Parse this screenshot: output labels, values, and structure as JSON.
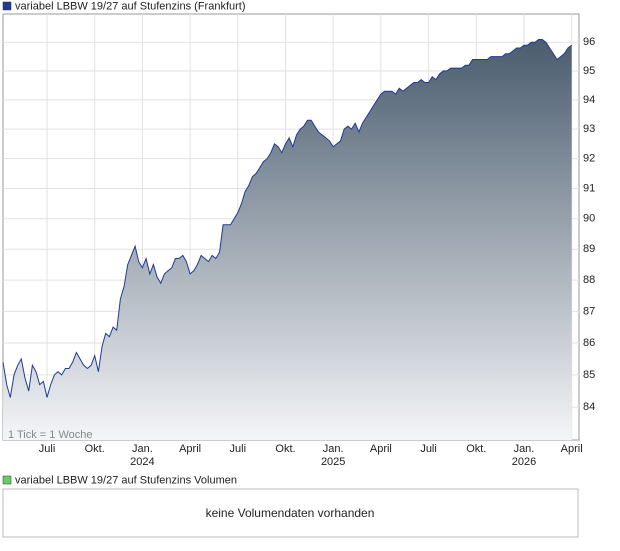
{
  "chart_data": {
    "type": "area",
    "legend_title": "variabel LBBW 19/27 auf Stufenzins (Frankfurt)",
    "legend_color": "#1f3a9a",
    "note": "1 Tick = 1 Woche",
    "log_scale": true,
    "grid": true,
    "fill_top": "#4a5c6e",
    "fill_bottom": "#f4f5f7",
    "xlim": [
      0,
      157
    ],
    "xticks": [
      {
        "value": 12,
        "label": "Juli"
      },
      {
        "value": 25,
        "label": "Okt."
      },
      {
        "value": 38,
        "label": "Jan.",
        "sublabel": "2024"
      },
      {
        "value": 51,
        "label": "April"
      },
      {
        "value": 64,
        "label": "Juli"
      },
      {
        "value": 77,
        "label": "Okt."
      },
      {
        "value": 90,
        "label": "Jan.",
        "sublabel": "2025"
      },
      {
        "value": 103,
        "label": "April"
      },
      {
        "value": 116,
        "label": "Juli"
      },
      {
        "value": 129,
        "label": "Okt."
      },
      {
        "value": 142,
        "label": "Jan.",
        "sublabel": "2026"
      },
      {
        "value": 155,
        "label": "April"
      }
    ],
    "ylim": [
      83,
      97
    ],
    "yticks": [
      84,
      85,
      86,
      87,
      88,
      89,
      90,
      91,
      92,
      93,
      94,
      95,
      96
    ],
    "x": [
      0,
      1,
      2,
      3,
      4,
      5,
      6,
      7,
      8,
      9,
      10,
      11,
      12,
      13,
      14,
      15,
      16,
      17,
      18,
      19,
      20,
      21,
      22,
      23,
      24,
      25,
      26,
      27,
      28,
      29,
      30,
      31,
      32,
      33,
      34,
      35,
      36,
      37,
      38,
      39,
      40,
      41,
      42,
      43,
      44,
      45,
      46,
      47,
      48,
      49,
      50,
      51,
      52,
      53,
      54,
      55,
      56,
      57,
      58,
      59,
      60,
      61,
      62,
      63,
      64,
      65,
      66,
      67,
      68,
      69,
      70,
      71,
      72,
      73,
      74,
      75,
      76,
      77,
      78,
      79,
      80,
      81,
      82,
      83,
      84,
      85,
      86,
      87,
      88,
      89,
      90,
      91,
      92,
      93,
      94,
      95,
      96,
      97,
      98,
      99,
      100,
      101,
      102,
      103,
      104,
      105,
      106,
      107,
      108,
      109,
      110,
      111,
      112,
      113,
      114,
      115,
      116,
      117,
      118,
      119,
      120,
      121,
      122,
      123,
      124,
      125,
      126,
      127,
      128,
      129,
      130,
      131,
      132,
      133,
      134,
      135,
      136,
      137,
      138,
      139,
      140,
      141,
      142,
      143,
      144,
      145,
      146,
      147,
      148,
      149,
      150,
      151,
      152,
      153,
      154,
      155
    ],
    "series": [
      {
        "color": "#1f3a9a",
        "values": [
          85.4,
          84.7,
          84.3,
          85.0,
          85.3,
          85.5,
          84.9,
          84.5,
          85.3,
          85.1,
          84.7,
          84.8,
          84.3,
          84.7,
          85.0,
          85.1,
          85.0,
          85.2,
          85.2,
          85.4,
          85.7,
          85.5,
          85.3,
          85.2,
          85.3,
          85.6,
          85.1,
          85.9,
          86.3,
          86.2,
          86.5,
          86.4,
          87.4,
          87.8,
          88.5,
          88.8,
          89.1,
          88.6,
          88.4,
          88.7,
          88.2,
          88.5,
          88.1,
          87.9,
          88.2,
          88.3,
          88.4,
          88.7,
          88.7,
          88.8,
          88.6,
          88.2,
          88.3,
          88.5,
          88.8,
          88.7,
          88.6,
          88.8,
          88.7,
          88.9,
          89.8,
          89.8,
          89.8,
          90.0,
          90.2,
          90.5,
          90.9,
          91.1,
          91.4,
          91.5,
          91.7,
          91.9,
          92.0,
          92.2,
          92.5,
          92.4,
          92.2,
          92.5,
          92.7,
          92.4,
          92.8,
          93.0,
          93.1,
          93.3,
          93.3,
          93.1,
          92.9,
          92.8,
          92.7,
          92.6,
          92.4,
          92.5,
          92.6,
          93.0,
          93.1,
          93.0,
          93.2,
          92.9,
          93.2,
          93.4,
          93.6,
          93.8,
          94.0,
          94.2,
          94.3,
          94.3,
          94.3,
          94.2,
          94.4,
          94.3,
          94.4,
          94.5,
          94.6,
          94.6,
          94.7,
          94.6,
          94.6,
          94.8,
          94.7,
          94.9,
          95.0,
          95.0,
          95.1,
          95.1,
          95.1,
          95.1,
          95.2,
          95.2,
          95.4,
          95.4,
          95.4,
          95.4,
          95.4,
          95.5,
          95.5,
          95.5,
          95.5,
          95.6,
          95.6,
          95.7,
          95.8,
          95.8,
          95.9,
          95.9,
          96.0,
          96.0,
          96.1,
          96.1,
          96.0,
          95.8,
          95.6,
          95.4,
          95.5,
          95.6,
          95.8,
          95.9
        ]
      }
    ]
  },
  "volume_chart": {
    "legend_title": "variabel LBBW 19/27 auf Stufenzins Volumen",
    "legend_color": "#66cc66",
    "message": "keine Volumendaten vorhanden"
  }
}
